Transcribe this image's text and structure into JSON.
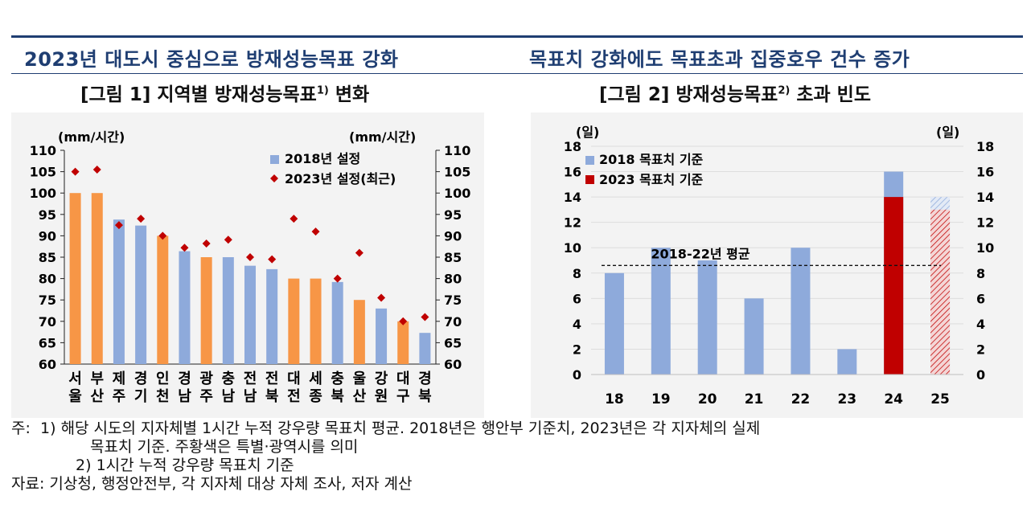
{
  "header": {
    "left_headline": "2023년 대도시 중심으로 방재성능목표 강화",
    "right_headline": "목표치 강화에도 목표초과 집중호우 건수 증가"
  },
  "figures": {
    "fig1_title": "[그림 1] 지역별 방재성능목표",
    "fig1_sup": "1)",
    "fig1_title_tail": " 변화",
    "fig2_title": "[그림 2] 방재성능목표",
    "fig2_sup": "2)",
    "fig2_title_tail": " 초과 빈도"
  },
  "colors": {
    "blue": "#8eaadb",
    "orange": "#f79646",
    "red": "#c00000",
    "diamond": "#c00000",
    "navy": "#1f3e72"
  },
  "chart_data": [
    {
      "type": "bar",
      "unit_left": "(mm/시간)",
      "unit_right": "(mm/시간)",
      "ylim": [
        60,
        110
      ],
      "yticks": [
        "60",
        "65",
        "70",
        "75",
        "80",
        "85",
        "90",
        "95",
        "100",
        "105",
        "110"
      ],
      "categories": [
        "서울",
        "부산",
        "제주",
        "경기",
        "인천",
        "경남",
        "광주",
        "충남",
        "전남",
        "전북",
        "대전",
        "세종",
        "충북",
        "울산",
        "강원",
        "대구",
        "경북"
      ],
      "category_lines": [
        [
          "서",
          "울"
        ],
        [
          "부",
          "산"
        ],
        [
          "제",
          "주"
        ],
        [
          "경",
          "기"
        ],
        [
          "인",
          "천"
        ],
        [
          "경",
          "남"
        ],
        [
          "광",
          "주"
        ],
        [
          "충",
          "남"
        ],
        [
          "전",
          "남"
        ],
        [
          "전",
          "북"
        ],
        [
          "대",
          "전"
        ],
        [
          "세",
          "종"
        ],
        [
          "충",
          "북"
        ],
        [
          "울",
          "산"
        ],
        [
          "강",
          "원"
        ],
        [
          "대",
          "구"
        ],
        [
          "경",
          "북"
        ]
      ],
      "bar_highlight": [
        true,
        true,
        false,
        false,
        true,
        false,
        true,
        false,
        false,
        false,
        true,
        true,
        false,
        true,
        false,
        true,
        false
      ],
      "series": [
        {
          "name": "2018년 설정",
          "values": [
            100,
            100,
            93.8,
            92.4,
            90,
            86.4,
            85,
            85,
            83,
            82.2,
            80,
            80,
            79.2,
            75,
            73,
            70,
            67.3
          ]
        },
        {
          "name": "2023년 설정(최근)",
          "values": [
            105,
            105.5,
            92.5,
            94,
            90,
            87.2,
            88.2,
            89.1,
            85,
            84.5,
            94,
            91,
            80,
            86,
            75.5,
            70,
            71
          ]
        }
      ],
      "legend": "top-right",
      "grid": false
    },
    {
      "type": "bar",
      "unit_left": "(일)",
      "unit_right": "(일)",
      "ylim": [
        0,
        18
      ],
      "yticks": [
        "0",
        "2",
        "4",
        "6",
        "8",
        "10",
        "12",
        "14",
        "16",
        "18"
      ],
      "categories": [
        "18",
        "19",
        "20",
        "21",
        "22",
        "23",
        "24",
        "25"
      ],
      "series": [
        {
          "name": "2018 목표치 기준",
          "values": [
            8,
            10,
            9,
            6,
            10,
            2,
            16,
            14
          ]
        },
        {
          "name": "2023 목표치 기준",
          "values": [
            null,
            null,
            null,
            null,
            null,
            null,
            14,
            13
          ]
        }
      ],
      "hatched_category": "25",
      "average_line": {
        "label": "2018-22년 평균",
        "value": 8.6
      },
      "legend": "top-left",
      "grid": true
    }
  ],
  "notes": {
    "note_label": "주:",
    "note1_num": "1)",
    "note1_line1": "해당 시도의 지자체별 1시간 누적 강우량 목표치 평균. 2018년은 행안부 기준치, 2023년은 각 지자체의 실제",
    "note1_line2": "목표치 기준. 주황색은 특별·광역시를 의미",
    "note2_num": "2)",
    "note2_text": "1시간 누적 강우량 목표치 기준",
    "source_label": "자료:",
    "source_text": "기상청, 행정안전부, 각 지자체 대상 자체 조사, 저자 계산"
  }
}
